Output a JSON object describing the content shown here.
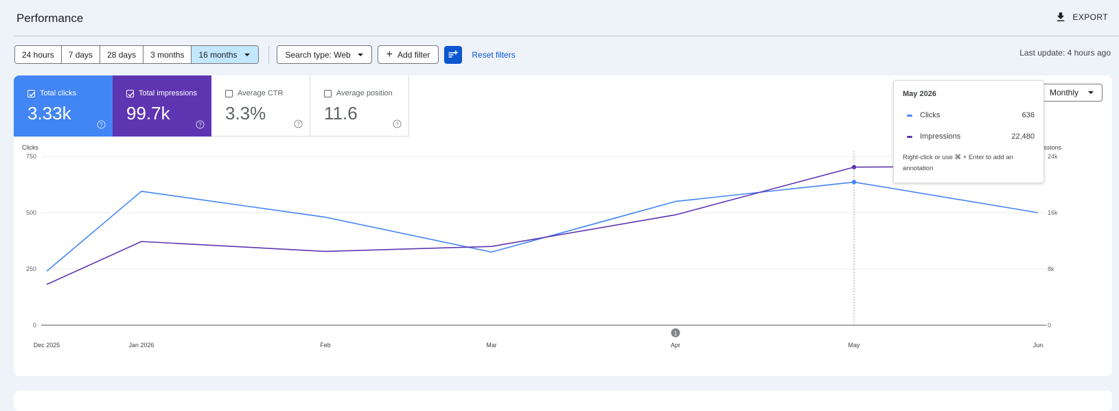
{
  "header": {
    "title": "Performance",
    "export_label": "EXPORT"
  },
  "toolbar": {
    "ranges": [
      "24 hours",
      "7 days",
      "28 days",
      "3 months",
      "16 months"
    ],
    "active_range": "16 months",
    "search_type": "Search type: Web",
    "add_filter": "Add filter",
    "reset_filters": "Reset filters",
    "last_update": "Last update: 4 hours ago"
  },
  "metrics": [
    {
      "label": "Total clicks",
      "value": "3.33k",
      "checked": true
    },
    {
      "label": "Total impressions",
      "value": "99.7k",
      "checked": true
    },
    {
      "label": "Average CTR",
      "value": "3.3%",
      "checked": false
    },
    {
      "label": "Average position",
      "value": "11.6",
      "checked": false
    }
  ],
  "granularity": "Monthly",
  "tooltip": {
    "title": "May 2026",
    "rows": [
      {
        "name": "Clicks",
        "value": "636"
      },
      {
        "name": "Impressions",
        "value": "22,480"
      }
    ],
    "hint": "Right-click or use ⌘ + Enter to add an annotation"
  },
  "annotation_marker": {
    "label": "1",
    "x": "Apr"
  },
  "colors": {
    "clicks": "#4285f4",
    "impressions": "#5e35b1",
    "accent": "#0b57d0"
  },
  "chart_data": {
    "type": "line",
    "x": [
      "Dec 2025",
      "Jan 2026",
      "Feb",
      "Mar",
      "Apr",
      "May",
      "Jun"
    ],
    "series": [
      {
        "name": "Clicks",
        "axis": "left",
        "values": [
          240,
          595,
          480,
          325,
          550,
          636,
          500
        ]
      },
      {
        "name": "Impressions",
        "axis": "right",
        "values": [
          5800,
          11900,
          10500,
          11200,
          15700,
          22480,
          22600
        ]
      }
    ],
    "ylabel_left": "Clicks",
    "ylabel_right": "Impressions",
    "ylim_left": [
      0,
      750
    ],
    "ylim_right": [
      0,
      24000
    ],
    "yticks_left": [
      "0",
      "250",
      "500",
      "750"
    ],
    "yticks_right": [
      "0",
      "8k",
      "16k",
      "24k"
    ],
    "highlight": "May",
    "grid": true,
    "legend": "none"
  }
}
